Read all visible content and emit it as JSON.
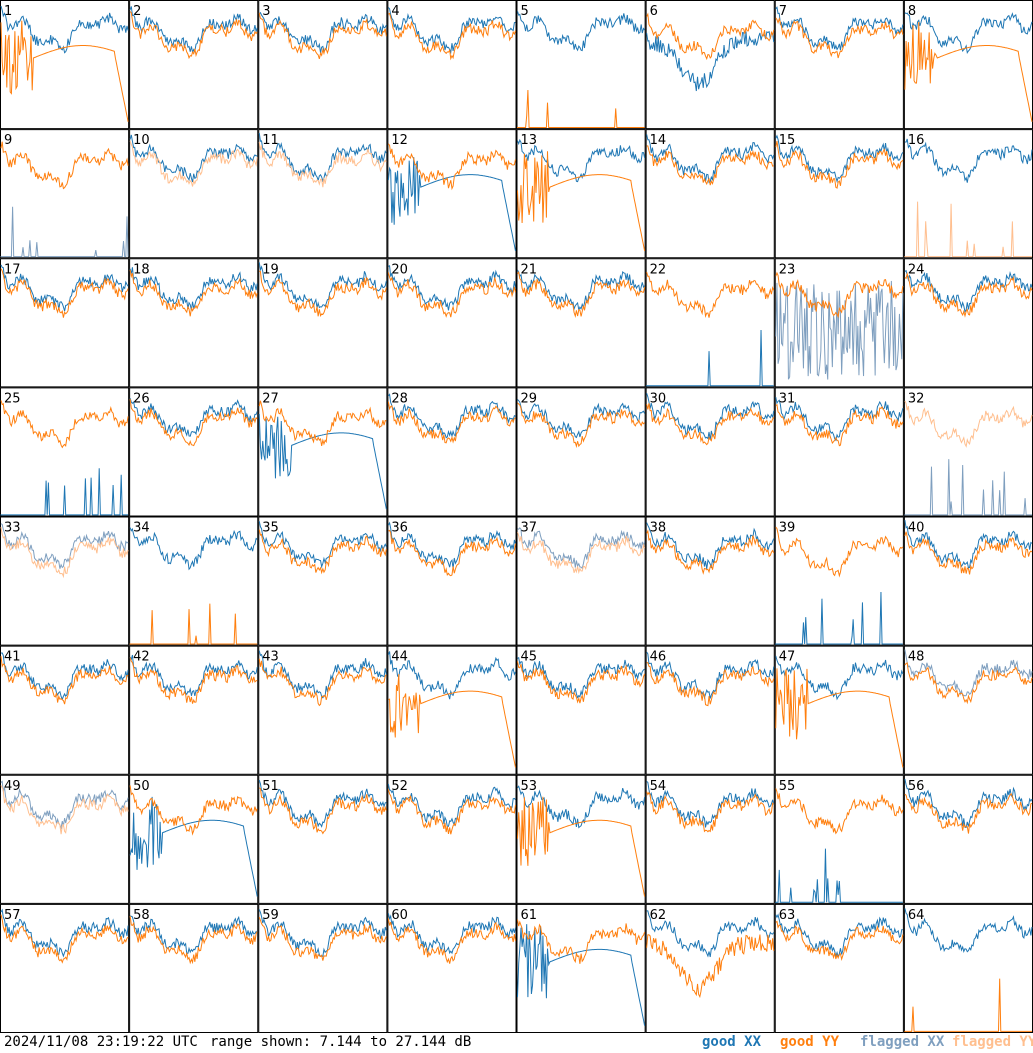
{
  "chart_data": {
    "type": "line",
    "layout": "8x8 small multiples of spectrum panels, one per antenna",
    "panel_labels": [
      "1",
      "2",
      "3",
      "4",
      "5",
      "6",
      "7",
      "8",
      "9",
      "10",
      "11",
      "12",
      "13",
      "14",
      "15",
      "16",
      "17",
      "18",
      "19",
      "20",
      "21",
      "22",
      "23",
      "24",
      "25",
      "26",
      "27",
      "28",
      "29",
      "30",
      "31",
      "32",
      "33",
      "34",
      "35",
      "36",
      "37",
      "38",
      "39",
      "40",
      "41",
      "42",
      "43",
      "44",
      "45",
      "46",
      "47",
      "48",
      "49",
      "50",
      "51",
      "52",
      "53",
      "54",
      "55",
      "56",
      "57",
      "58",
      "59",
      "60",
      "61",
      "62",
      "63",
      "64"
    ],
    "ylim_db": [
      7.144,
      27.144
    ],
    "series_legend": [
      {
        "name": "good XX",
        "color": "#1f77b4"
      },
      {
        "name": "good YY",
        "color": "#ff7f0e"
      },
      {
        "name": "flagged XX",
        "color": "#7f9fbf"
      },
      {
        "name": "flagged YY",
        "color": "#ffbf8f"
      }
    ],
    "panel_style": {
      "1": {
        "x": "good",
        "y": "decay"
      },
      "5": {
        "x": "good",
        "y": "spikes"
      },
      "6": {
        "x": "sag",
        "y": "good"
      },
      "8": {
        "x": "good",
        "y": "decay"
      },
      "9": {
        "x": "flagged-spikes",
        "y": "good"
      },
      "10": {
        "x": "good",
        "y": "flagged"
      },
      "11": {
        "x": "good",
        "y": "flagged"
      },
      "12": {
        "x": "decay",
        "y": "good"
      },
      "13": {
        "x": "good",
        "y": "decay"
      },
      "16": {
        "x": "good",
        "y": "flagged-spikes"
      },
      "22": {
        "x": "spikes",
        "y": "good"
      },
      "23": {
        "x": "flagged-noise",
        "y": "good"
      },
      "25": {
        "x": "spikes",
        "y": "good"
      },
      "27": {
        "x": "decay",
        "y": "good"
      },
      "32": {
        "x": "flagged-spikes",
        "y": "flagged"
      },
      "33": {
        "x": "flagged",
        "y": "flagged"
      },
      "34": {
        "x": "good",
        "y": "spikes"
      },
      "37": {
        "x": "flagged",
        "y": "flagged"
      },
      "39": {
        "x": "spikes",
        "y": "good"
      },
      "44": {
        "x": "good",
        "y": "decay"
      },
      "47": {
        "x": "good",
        "y": "decay"
      },
      "48": {
        "x": "flagged",
        "y": "good"
      },
      "49": {
        "x": "flagged",
        "y": "flagged"
      },
      "50": {
        "x": "decay",
        "y": "good"
      },
      "53": {
        "x": "good",
        "y": "decay"
      },
      "55": {
        "x": "spikes",
        "y": "good"
      },
      "61": {
        "x": "decay",
        "y": "good"
      },
      "62": {
        "x": "good",
        "y": "sag"
      },
      "64": {
        "x": "good",
        "y": "spikes"
      }
    }
  },
  "footer": {
    "timestamp": "2024/11/08 23:19:22 UTC",
    "range_text": "range shown: 7.144 to 27.144 dB",
    "legend": {
      "good_xx": "good XX",
      "good_yy": "good YY",
      "flagged_xx": "flagged XX",
      "flagged_yy": "flagged YY"
    }
  }
}
